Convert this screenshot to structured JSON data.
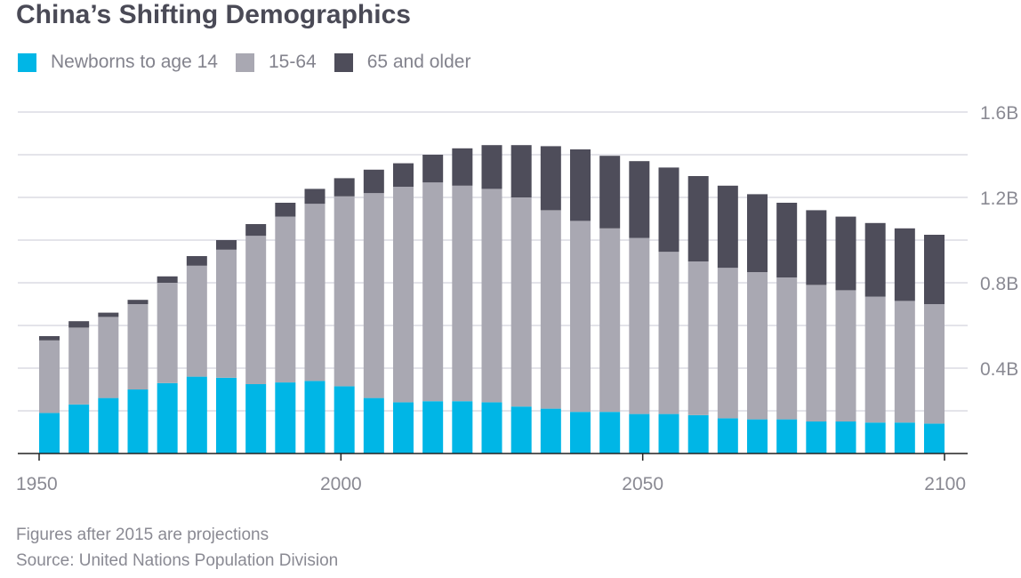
{
  "title": "China’s Shifting Demographics",
  "legend": [
    {
      "label": "Newborns to age 14",
      "color": "#00b6e6"
    },
    {
      "label": "15-64",
      "color": "#a9a8b2"
    },
    {
      "label": "65 and older",
      "color": "#4e4d5a"
    }
  ],
  "notes": {
    "projection": "Figures after 2015 are projections",
    "source": "Source: United Nations Population Division"
  },
  "chart_data": {
    "type": "bar",
    "stacked": true,
    "title": "China’s Shifting Demographics",
    "xlabel": "",
    "ylabel": "",
    "x": [
      1950,
      1955,
      1960,
      1965,
      1970,
      1975,
      1980,
      1985,
      1990,
      1995,
      2000,
      2005,
      2010,
      2015,
      2020,
      2025,
      2030,
      2035,
      2040,
      2045,
      2050,
      2055,
      2060,
      2065,
      2070,
      2075,
      2080,
      2085,
      2090,
      2095,
      2100
    ],
    "x_ticks": [
      1950,
      2000,
      2050,
      2100
    ],
    "x_tick_labels": [
      "1950",
      "2000",
      "2050",
      "2100"
    ],
    "y_unit": "billions",
    "ylim": [
      0,
      1.6
    ],
    "y_ticks": [
      0.4,
      0.8,
      1.2,
      1.6
    ],
    "y_tick_labels": [
      "0.4B",
      "0.8B",
      "1.2B",
      "1.6B"
    ],
    "gridlines_every": 0.2,
    "grid": true,
    "y_axis_position": "right",
    "legend_position": "top-left",
    "series": [
      {
        "name": "Newborns to age 14",
        "color": "#00b6e6",
        "values": [
          0.19,
          0.23,
          0.26,
          0.3,
          0.33,
          0.36,
          0.355,
          0.325,
          0.333,
          0.34,
          0.315,
          0.26,
          0.24,
          0.245,
          0.245,
          0.24,
          0.22,
          0.21,
          0.195,
          0.195,
          0.185,
          0.185,
          0.18,
          0.165,
          0.16,
          0.16,
          0.15,
          0.15,
          0.145,
          0.145,
          0.14
        ]
      },
      {
        "name": "15-64",
        "color": "#a9a8b2",
        "values": [
          0.34,
          0.36,
          0.38,
          0.4,
          0.47,
          0.52,
          0.6,
          0.695,
          0.777,
          0.83,
          0.89,
          0.96,
          1.01,
          1.025,
          1.01,
          1.0,
          0.98,
          0.93,
          0.895,
          0.86,
          0.825,
          0.76,
          0.72,
          0.705,
          0.69,
          0.665,
          0.64,
          0.615,
          0.59,
          0.57,
          0.56
        ]
      },
      {
        "name": "65 and older",
        "color": "#4e4d5a",
        "values": [
          0.02,
          0.03,
          0.02,
          0.02,
          0.03,
          0.045,
          0.045,
          0.055,
          0.065,
          0.07,
          0.085,
          0.11,
          0.11,
          0.13,
          0.175,
          0.205,
          0.245,
          0.3,
          0.335,
          0.34,
          0.36,
          0.395,
          0.4,
          0.385,
          0.365,
          0.35,
          0.35,
          0.345,
          0.345,
          0.34,
          0.325
        ]
      }
    ],
    "annotations": [
      "Figures after 2015 are projections"
    ]
  }
}
